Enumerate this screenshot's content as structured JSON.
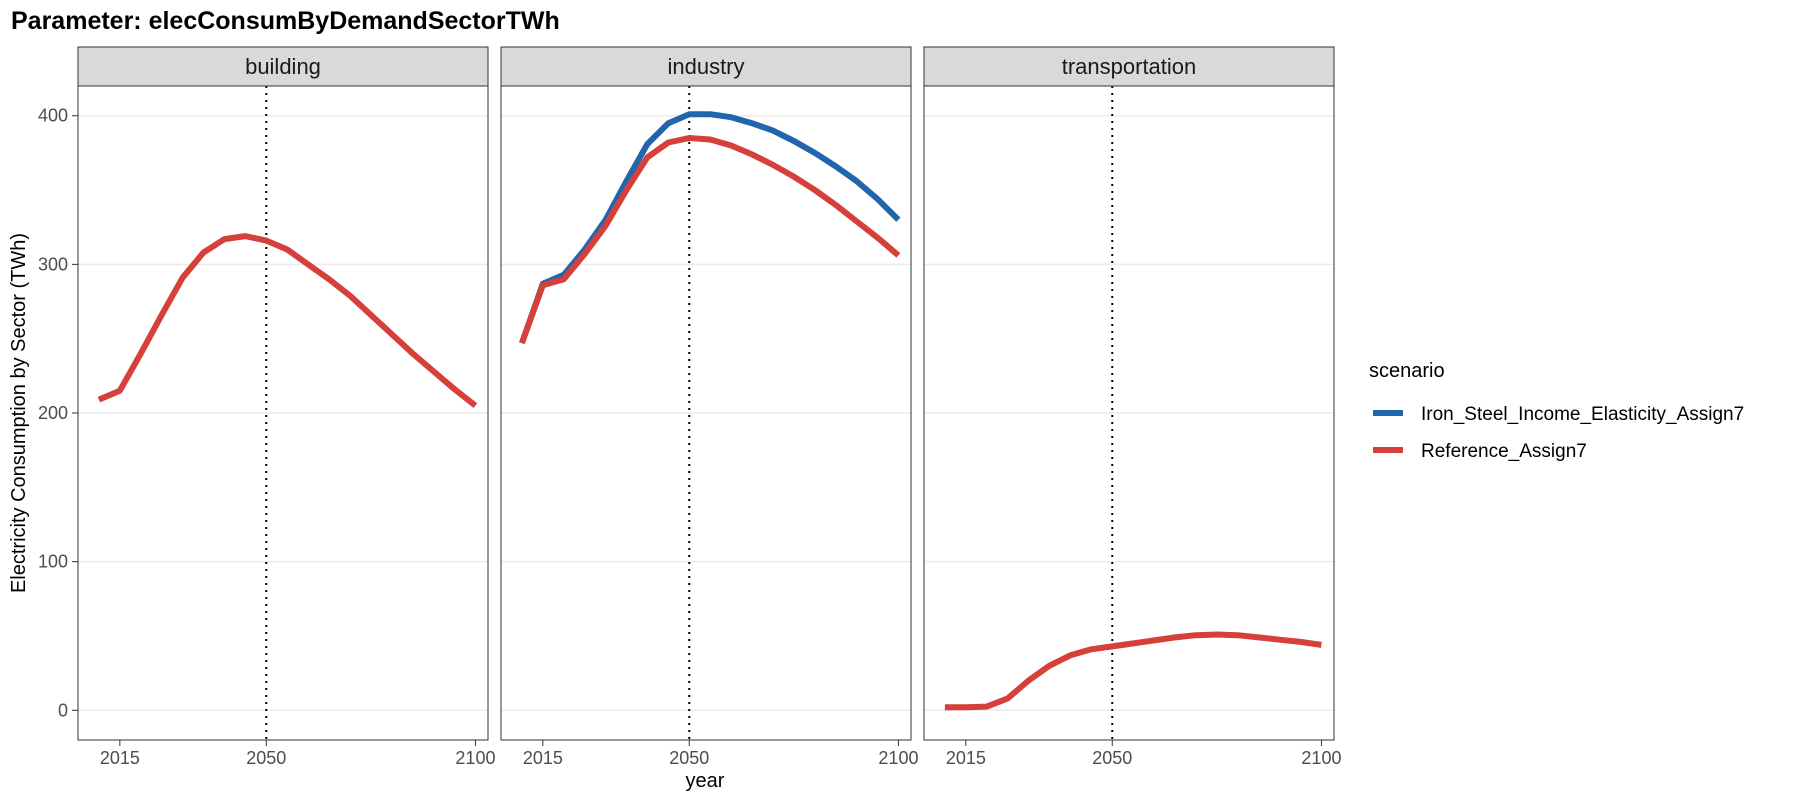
{
  "chart_data": {
    "type": "line",
    "title": "Parameter: elecConsumByDemandSectorTWh",
    "xlabel": "year",
    "ylabel": "Electricity Consumption by Sector (TWh)",
    "xlim": [
      2005,
      2103
    ],
    "ylim": [
      -20,
      420
    ],
    "x_ticks": [
      2015,
      2050,
      2100
    ],
    "x_tick_labels": [
      "2015",
      "2050",
      "2100"
    ],
    "y_ticks": [
      0,
      100,
      200,
      300,
      400
    ],
    "y_tick_labels": [
      "0",
      "100",
      "200",
      "300",
      "400"
    ],
    "vline_x": 2050,
    "grid": true,
    "legend": {
      "title": "scenario",
      "position": "right",
      "entries": [
        {
          "name": "Iron_Steel_Income_Elasticity_Assign7",
          "color": "#2166ac"
        },
        {
          "name": "Reference_Assign7",
          "color": "#d6403a"
        }
      ]
    },
    "x": [
      2010,
      2015,
      2020,
      2025,
      2030,
      2035,
      2040,
      2045,
      2050,
      2055,
      2060,
      2065,
      2070,
      2075,
      2080,
      2085,
      2090,
      2095,
      2100
    ],
    "panels": [
      {
        "name": "building",
        "series": [
          {
            "name": "Reference_Assign7",
            "color": "#d6403a",
            "values": [
              209,
              215,
              240,
              266,
              291,
              308,
              317,
              319,
              316,
              310,
              300,
              290,
              279,
              266,
              253,
              240,
              228,
              216,
              205
            ]
          }
        ]
      },
      {
        "name": "industry",
        "series": [
          {
            "name": "Iron_Steel_Income_Elasticity_Assign7",
            "color": "#2166ac",
            "values": [
              247,
              287,
              293,
              310,
              330,
              356,
              381,
              395,
              401,
              401,
              399,
              395,
              390,
              383,
              375,
              366,
              356,
              344,
              330
            ]
          },
          {
            "name": "Reference_Assign7",
            "color": "#d6403a",
            "values": [
              247,
              286,
              290,
              307,
              326,
              350,
              372,
              382,
              385,
              384,
              380,
              374,
              367,
              359,
              350,
              340,
              329,
              318,
              306
            ]
          }
        ]
      },
      {
        "name": "transportation",
        "series": [
          {
            "name": "Reference_Assign7",
            "color": "#d6403a",
            "values": [
              2,
              2,
              2.5,
              8,
              20,
              30,
              37,
              41,
              43,
              45,
              47,
              49,
              50.5,
              51,
              50.5,
              49,
              47.5,
              46,
              44
            ]
          }
        ]
      }
    ]
  }
}
